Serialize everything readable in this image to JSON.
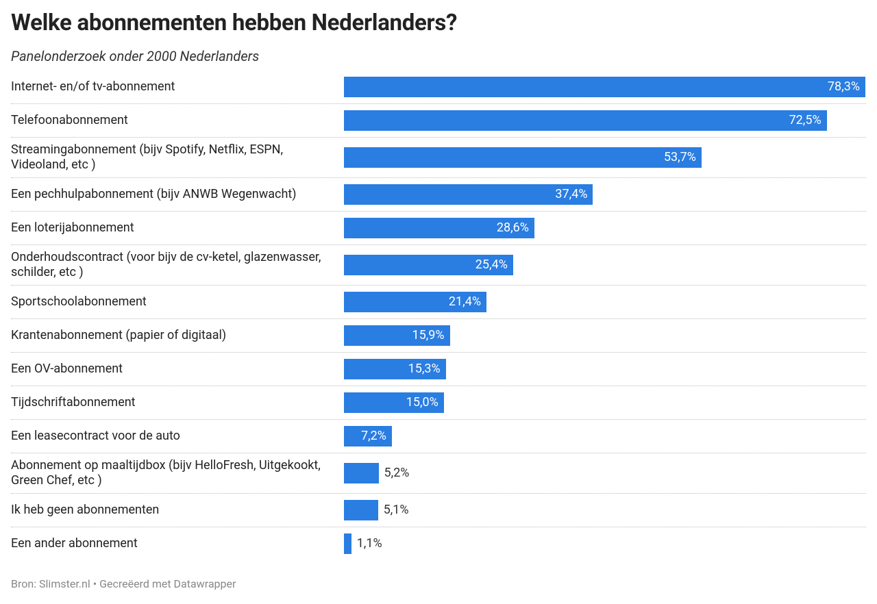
{
  "chart_data": {
    "type": "bar",
    "orientation": "horizontal",
    "title": "Welke abonnementen hebben Nederlanders?",
    "subtitle": "Panelonderzoek onder 2000 Nederlanders",
    "categories": [
      "Internet- en/of tv-abonnement",
      "Telefoonabonnement",
      "Streamingabonnement (bijv Spotify, Netflix, ESPN, Videoland, etc )",
      "Een pechhulpabonnement (bijv ANWB Wegenwacht)",
      "Een loterijabonnement",
      "Onderhoudscontract (voor bijv de cv-ketel, glazenwasser, schilder, etc )",
      "Sportschoolabonnement",
      "Krantenabonnement (papier of digitaal)",
      "Een OV-abonnement",
      "Tijdschriftabonnement",
      "Een leasecontract voor de auto",
      "Abonnement op maaltijdbox (bijv HelloFresh, Uitgekookt, Green Chef, etc )",
      "Ik heb geen abonnementen",
      "Een ander abonnement"
    ],
    "values": [
      78.3,
      72.5,
      53.7,
      37.4,
      28.6,
      25.4,
      21.4,
      15.9,
      15.3,
      15.0,
      7.2,
      5.2,
      5.1,
      1.1
    ],
    "value_labels": [
      "78,3%",
      "72,5%",
      "53,7%",
      "37,4%",
      "28,6%",
      "25,4%",
      "21,4%",
      "15,9%",
      "15,3%",
      "15,0%",
      "7,2%",
      "5,2%",
      "5,1%",
      "1,1%"
    ],
    "color": "#2a7de1",
    "footer": "Bron: Slimster.nl • Gecreëerd met Datawrapper"
  }
}
